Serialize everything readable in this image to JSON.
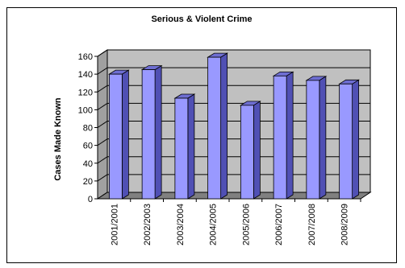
{
  "chart_data": {
    "type": "bar",
    "title": "Serious & Violent Crime",
    "xlabel": "",
    "ylabel": "Cases Made Known",
    "categories": [
      "2001/2001",
      "2002/2003",
      "2003/2004",
      "2004/2005",
      "2005/2006",
      "2006/2007",
      "2007/2008",
      "2008/2009"
    ],
    "values": [
      140,
      145,
      113,
      159,
      105,
      138,
      133,
      129
    ],
    "ylim": [
      0,
      160
    ],
    "yticks": [
      0,
      20,
      40,
      60,
      80,
      100,
      120,
      140,
      160
    ],
    "grid": true,
    "legend": "none",
    "colors": {
      "bar_front": "#9999FF",
      "bar_side": "#5050B4",
      "bar_top": "#6E6ED2",
      "back_wall": "#C0C0C0",
      "floor": "#808080",
      "side_wall": "#A0A0A0"
    }
  }
}
